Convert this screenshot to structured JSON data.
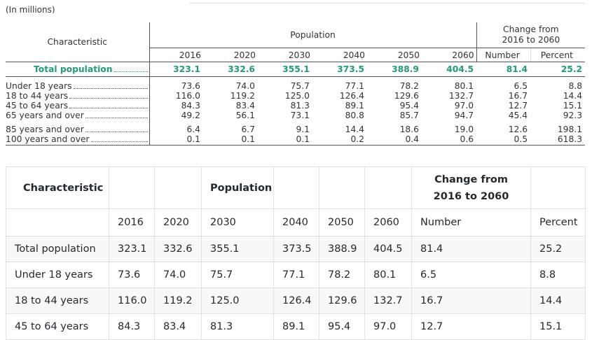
{
  "figure": {
    "caption": "(In millions)",
    "headers": {
      "characteristic": "Characteristic",
      "population": "Population",
      "change": "Change from 2016 to 2060",
      "years": [
        "2016",
        "2020",
        "2030",
        "2040",
        "2050",
        "2060"
      ],
      "number": "Number",
      "percent": "Percent"
    },
    "rows": [
      [
        "Total population",
        "323.1",
        "332.6",
        "355.1",
        "373.5",
        "388.9",
        "404.5",
        "81.4",
        "25.2"
      ],
      [
        "Under 18 years",
        "73.6",
        "74.0",
        "75.7",
        "77.1",
        "78.2",
        "80.1",
        "6.5",
        "8.8"
      ],
      [
        "18 to 44 years",
        "116.0",
        "119.2",
        "125.0",
        "126.4",
        "129.6",
        "132.7",
        "16.7",
        "14.4"
      ],
      [
        "45 to 64 years",
        "84.3",
        "83.4",
        "81.3",
        "89.1",
        "95.4",
        "97.0",
        "12.7",
        "15.1"
      ],
      [
        "65 years and over",
        "49.2",
        "56.1",
        "73.1",
        "80.8",
        "85.7",
        "94.7",
        "45.4",
        "92.3"
      ],
      [
        "85 years and over",
        "6.4",
        "6.7",
        "9.1",
        "14.4",
        "18.6",
        "19.0",
        "12.6",
        "198.1"
      ],
      [
        "100 years and over",
        "0.1",
        "0.1",
        "0.1",
        "0.2",
        "0.4",
        "0.6",
        "0.5",
        "618.3"
      ]
    ]
  },
  "table": {
    "header": [
      "Characteristic",
      "Population",
      "Change from 2016 to 2060"
    ],
    "subheader": [
      "2016",
      "2020",
      "2030",
      "2040",
      "2050",
      "2060",
      "Number",
      "Percent"
    ],
    "rows": [
      [
        "Total population",
        "323.1",
        "332.6",
        "355.1",
        "373.5",
        "388.9",
        "404.5",
        "81.4",
        "25.2"
      ],
      [
        "Under 18 years",
        "73.6",
        "74.0",
        "75.7",
        "77.1",
        "78.2",
        "80.1",
        "6.5",
        "8.8"
      ],
      [
        "18 to 44 years",
        "116.0",
        "119.2",
        "125.0",
        "126.4",
        "129.6",
        "132.7",
        "16.7",
        "14.4"
      ],
      [
        "45 to 64 years",
        "84.3",
        "83.4",
        "81.3",
        "89.1",
        "95.4",
        "97.0",
        "12.7",
        "15.1"
      ]
    ]
  }
}
